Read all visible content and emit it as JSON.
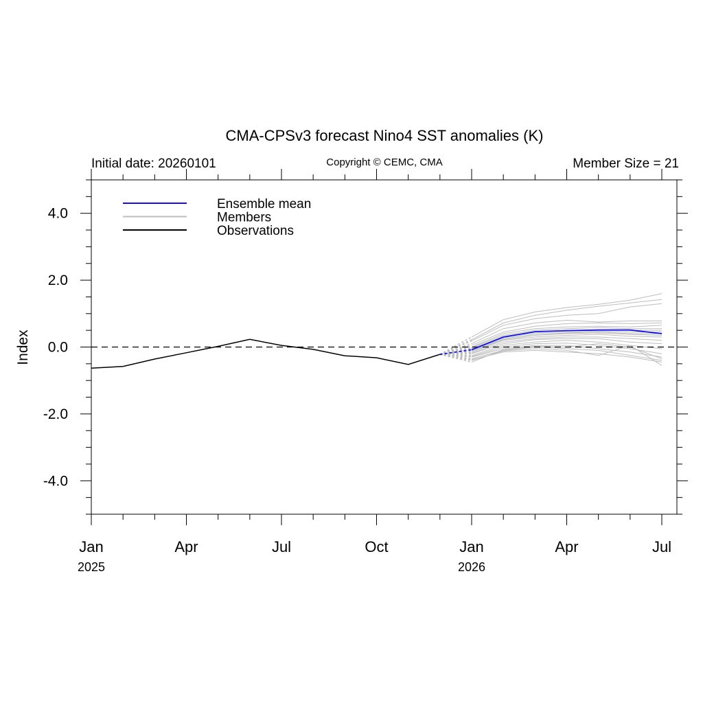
{
  "chart_data": {
    "type": "line",
    "title": "CMA-CPSv3 forecast Nino4 SST anomalies (K)",
    "subtitle_left": "Initial date: 20260101",
    "subtitle_center": "Copyright © CEMC, CMA",
    "subtitle_right": "Member Size = 21",
    "xlabel": "",
    "ylabel": "Index",
    "ylim": [
      -5,
      5
    ],
    "xlim": [
      "2025-01",
      "2026-07"
    ],
    "x_ticks": [
      {
        "x": "2025-01",
        "label": "Jan",
        "year": "2025"
      },
      {
        "x": "2025-04",
        "label": "Apr",
        "year": ""
      },
      {
        "x": "2025-07",
        "label": "Jul",
        "year": ""
      },
      {
        "x": "2025-10",
        "label": "Oct",
        "year": ""
      },
      {
        "x": "2026-01",
        "label": "Jan",
        "year": "2026"
      },
      {
        "x": "2026-04",
        "label": "Apr",
        "year": ""
      },
      {
        "x": "2026-07",
        "label": "Jul",
        "year": ""
      }
    ],
    "y_ticks": [
      {
        "y": 4,
        "label": "4.0"
      },
      {
        "y": 2,
        "label": "2.0"
      },
      {
        "y": 0,
        "label": "0.0"
      },
      {
        "y": -2,
        "label": "-2.0"
      },
      {
        "y": -4,
        "label": "-4.0"
      }
    ],
    "reference_line": 0,
    "grid": false,
    "legend_position": "top-left",
    "legend": [
      {
        "label": "Ensemble mean",
        "color": "#1010e6"
      },
      {
        "label": "Members",
        "color": "#bdbdbd"
      },
      {
        "label": "Observations",
        "color": "#000000"
      }
    ],
    "observations": {
      "name": "Observations",
      "color": "#000000",
      "x": [
        "2025-01",
        "2025-02",
        "2025-03",
        "2025-04",
        "2025-05",
        "2025-06",
        "2025-07",
        "2025-08",
        "2025-09",
        "2025-10",
        "2025-11",
        "2025-12"
      ],
      "values": [
        -0.63,
        -0.58,
        -0.36,
        -0.17,
        0.02,
        0.23,
        0.05,
        -0.07,
        -0.26,
        -0.32,
        -0.52,
        -0.22
      ]
    },
    "ensemble_mean": {
      "name": "Ensemble mean",
      "color": "#1010e6",
      "x": [
        "2025-12",
        "2026-01",
        "2026-02",
        "2026-03",
        "2026-04",
        "2026-05",
        "2026-06",
        "2026-07"
      ],
      "values": [
        -0.22,
        -0.08,
        0.3,
        0.46,
        0.49,
        0.51,
        0.51,
        0.4
      ]
    },
    "members": {
      "name": "Members",
      "color": "#bdbdbd",
      "x": [
        "2025-12",
        "2026-01",
        "2026-02",
        "2026-03",
        "2026-04",
        "2026-05",
        "2026-06",
        "2026-07"
      ],
      "series": [
        [
          -0.22,
          0.3,
          0.82,
          1.05,
          1.18,
          1.28,
          1.4,
          1.6
        ],
        [
          -0.22,
          0.22,
          0.72,
          0.95,
          1.1,
          1.22,
          1.32,
          1.42
        ],
        [
          -0.22,
          0.18,
          0.65,
          0.85,
          0.95,
          1.0,
          1.2,
          1.3
        ],
        [
          -0.22,
          0.1,
          0.55,
          0.72,
          0.8,
          0.75,
          0.78,
          0.78
        ],
        [
          -0.22,
          0.05,
          0.45,
          0.62,
          0.7,
          0.72,
          0.7,
          0.72
        ],
        [
          -0.22,
          0.0,
          0.4,
          0.55,
          0.6,
          0.62,
          0.6,
          0.65
        ],
        [
          -0.22,
          -0.02,
          0.35,
          0.5,
          0.55,
          0.58,
          0.55,
          0.55
        ],
        [
          -0.22,
          -0.05,
          0.3,
          0.45,
          0.5,
          0.5,
          0.5,
          0.5
        ],
        [
          -0.22,
          -0.08,
          0.28,
          0.42,
          0.45,
          0.48,
          0.45,
          0.45
        ],
        [
          -0.22,
          -0.1,
          0.25,
          0.38,
          0.42,
          0.45,
          0.4,
          0.4
        ],
        [
          -0.22,
          -0.12,
          0.22,
          0.35,
          0.4,
          0.42,
          0.38,
          0.35
        ],
        [
          -0.22,
          -0.15,
          0.2,
          0.3,
          0.35,
          0.38,
          0.32,
          0.3
        ],
        [
          -0.22,
          -0.18,
          0.15,
          0.25,
          0.3,
          0.3,
          0.25,
          0.2
        ],
        [
          -0.22,
          -0.2,
          0.1,
          0.22,
          0.25,
          0.25,
          0.15,
          0.1
        ],
        [
          -0.22,
          -0.25,
          0.05,
          0.15,
          0.2,
          0.15,
          0.05,
          -0.05
        ],
        [
          -0.22,
          -0.28,
          0.0,
          0.1,
          0.12,
          0.05,
          -0.05,
          -0.2
        ],
        [
          -0.22,
          -0.3,
          -0.05,
          0.05,
          0.05,
          -0.05,
          -0.15,
          -0.3
        ],
        [
          -0.22,
          -0.35,
          -0.1,
          0.0,
          -0.05,
          -0.1,
          -0.25,
          -0.4
        ],
        [
          -0.22,
          -0.38,
          -0.15,
          -0.1,
          -0.15,
          -0.2,
          -0.3,
          -0.45
        ],
        [
          -0.22,
          -0.4,
          -0.12,
          -0.05,
          -0.1,
          -0.25,
          0.05,
          -0.55
        ],
        [
          -0.22,
          -0.45,
          -0.08,
          0.02,
          0.0,
          0.1,
          0.0,
          -0.35
        ]
      ]
    }
  }
}
